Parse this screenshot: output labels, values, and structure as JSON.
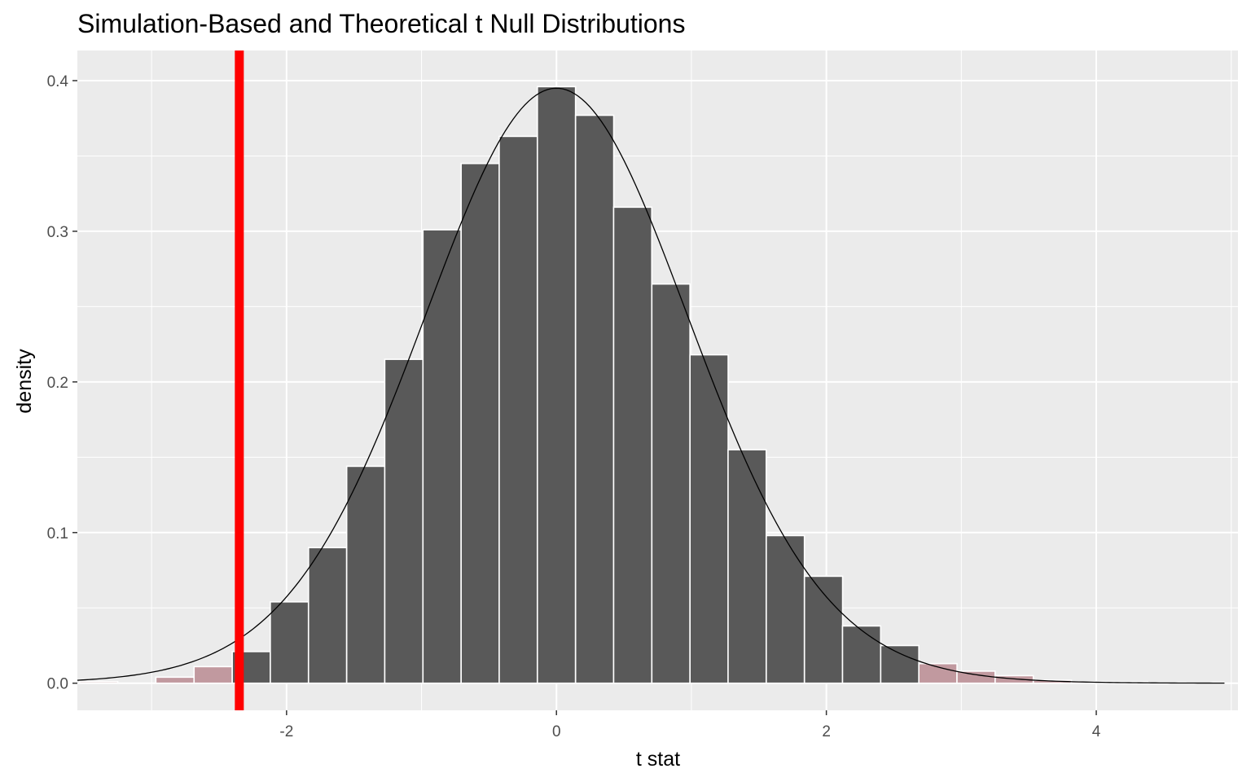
{
  "chart_data": {
    "type": "bar",
    "title": "Simulation-Based and Theoretical t Null Distributions",
    "xlabel": "t stat",
    "ylabel": "density",
    "xlim": [
      -3.55,
      5.05
    ],
    "ylim": [
      -0.018,
      0.42
    ],
    "x_ticks": [
      -2,
      0,
      2,
      4
    ],
    "x_tick_labels": [
      "-2",
      "0",
      "2",
      "4"
    ],
    "y_ticks": [
      0.0,
      0.1,
      0.2,
      0.3,
      0.4
    ],
    "y_tick_labels": [
      "0.0",
      "0.1",
      "0.2",
      "0.3",
      "0.4"
    ],
    "grid": true,
    "legend": "none",
    "colors": {
      "panel": "#ebebeb",
      "grid": "#ffffff",
      "bar_fill": "#595959",
      "bar_outline": "#ffffff",
      "shaded_fill": "#c1999f",
      "curve": "#000000",
      "observed_line": "#ff0000"
    },
    "bin_width": 0.2826,
    "bins": {
      "x_center": [
        -3.392,
        -3.109,
        -2.827,
        -2.544,
        -2.261,
        -1.979,
        -1.696,
        -1.413,
        -1.131,
        -0.848,
        -0.565,
        -0.283,
        0.0,
        0.283,
        0.565,
        0.848,
        1.131,
        1.413,
        1.696,
        1.979,
        2.261,
        2.544,
        2.827,
        3.109,
        3.392,
        3.675,
        3.957,
        4.24,
        4.523,
        4.805
      ],
      "density": [
        0.001,
        0.0,
        0.004,
        0.011,
        0.021,
        0.054,
        0.09,
        0.144,
        0.215,
        0.301,
        0.345,
        0.363,
        0.396,
        0.377,
        0.316,
        0.265,
        0.218,
        0.155,
        0.098,
        0.071,
        0.038,
        0.025,
        0.013,
        0.008,
        0.005,
        0.002,
        0.001,
        0.001,
        0.0005,
        0.0002
      ],
      "shaded": [
        true,
        true,
        true,
        true,
        false,
        false,
        false,
        false,
        false,
        false,
        false,
        false,
        false,
        false,
        false,
        false,
        false,
        false,
        false,
        false,
        false,
        false,
        true,
        true,
        true,
        true,
        true,
        true,
        true,
        true
      ]
    },
    "theoretical_curve": {
      "name": "t distribution",
      "df": 25,
      "x_range": [
        -3.55,
        4.95
      ]
    },
    "observed_statistic": -2.35
  }
}
